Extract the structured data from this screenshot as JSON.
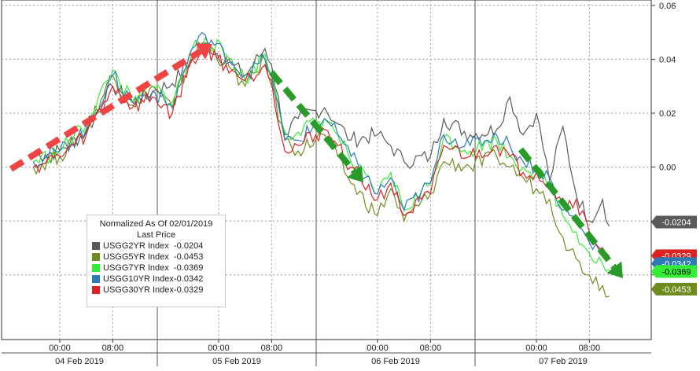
{
  "chart_data": {
    "type": "line",
    "title": "",
    "xlabel": "",
    "ylabel": "",
    "x_ticks": [
      {
        "label": "00:00",
        "day_idx": 0,
        "hour": 0
      },
      {
        "label": "08:00",
        "day_idx": 0,
        "hour": 8
      },
      {
        "label": "00:00",
        "day_idx": 1,
        "hour": 0
      },
      {
        "label": "08:00",
        "day_idx": 1,
        "hour": 8
      },
      {
        "label": "00:00",
        "day_idx": 2,
        "hour": 0
      },
      {
        "label": "08:00",
        "day_idx": 2,
        "hour": 8
      },
      {
        "label": "00:00",
        "day_idx": 3,
        "hour": 0
      },
      {
        "label": "08:00",
        "day_idx": 3,
        "hour": 8
      }
    ],
    "day_labels": [
      "04 Feb 2019",
      "05 Feb 2019",
      "06 Feb 2019",
      "07 Feb 2019"
    ],
    "y_ticks": [
      0.06,
      0.04,
      0.02,
      0.0,
      -0.02,
      -0.04
    ],
    "y_tick_labels": [
      "0.06",
      "0.04",
      "0.02",
      "0.00",
      "-0.02",
      "-0.04"
    ],
    "ylim": [
      -0.064,
      0.062
    ],
    "grid": true,
    "legend_position": "bottom-left",
    "legend_header": [
      "Normalized As Of 02/01/2019",
      "Last Price"
    ],
    "series": [
      {
        "name": "USGG2YR Index",
        "last": -0.0204,
        "last_label": "-0.0204",
        "color": "#5a5a5a",
        "points": [
          [
            -4,
            0.004
          ],
          [
            0,
            0.006
          ],
          [
            4,
            0.013
          ],
          [
            8,
            0.03
          ],
          [
            11,
            0.024
          ],
          [
            14,
            0.028
          ],
          [
            17,
            0.031
          ],
          [
            20,
            0.04
          ],
          [
            22,
            0.046
          ],
          [
            26,
            0.038
          ],
          [
            28,
            0.034
          ],
          [
            31,
            0.044
          ],
          [
            32,
            0.038
          ],
          [
            34,
            0.012
          ],
          [
            36,
            0.018
          ],
          [
            40,
            0.022
          ],
          [
            42,
            0.016
          ],
          [
            44,
            0.01
          ],
          [
            48,
            0.012
          ],
          [
            50,
            0.008
          ],
          [
            52,
            0.002
          ],
          [
            56,
            0.004
          ],
          [
            58,
            0.018
          ],
          [
            62,
            0.012
          ],
          [
            66,
            0.014
          ],
          [
            68,
            0.026
          ],
          [
            70,
            0.012
          ],
          [
            72,
            0.02
          ],
          [
            74,
            -0.005
          ],
          [
            76,
            0.015
          ],
          [
            78,
            -0.01
          ],
          [
            80,
            -0.02
          ],
          [
            82,
            -0.012
          ],
          [
            83,
            -0.022
          ]
        ]
      },
      {
        "name": "USGG5YR Index",
        "last": -0.0453,
        "last_label": "-0.0453",
        "color": "#6e8c1e",
        "points": [
          [
            -4,
            0.0
          ],
          [
            0,
            0.004
          ],
          [
            4,
            0.014
          ],
          [
            8,
            0.034
          ],
          [
            11,
            0.023
          ],
          [
            14,
            0.03
          ],
          [
            17,
            0.022
          ],
          [
            20,
            0.042
          ],
          [
            22,
            0.046
          ],
          [
            26,
            0.036
          ],
          [
            28,
            0.03
          ],
          [
            31,
            0.04
          ],
          [
            32,
            0.03
          ],
          [
            34,
            0.01
          ],
          [
            36,
            0.006
          ],
          [
            40,
            0.012
          ],
          [
            42,
            0.004
          ],
          [
            44,
            -0.006
          ],
          [
            48,
            -0.018
          ],
          [
            50,
            -0.008
          ],
          [
            52,
            -0.02
          ],
          [
            56,
            -0.01
          ],
          [
            58,
            0.002
          ],
          [
            62,
            0.0
          ],
          [
            66,
            0.004
          ],
          [
            68,
            0.0
          ],
          [
            70,
            -0.004
          ],
          [
            72,
            -0.008
          ],
          [
            74,
            -0.012
          ],
          [
            76,
            -0.026
          ],
          [
            78,
            -0.034
          ],
          [
            80,
            -0.04
          ],
          [
            82,
            -0.044
          ],
          [
            83,
            -0.048
          ]
        ]
      },
      {
        "name": "USGG7YR Index",
        "last": -0.0369,
        "last_label": "-0.0369",
        "color": "#33ee33",
        "points": [
          [
            -4,
            0.002
          ],
          [
            0,
            0.006
          ],
          [
            4,
            0.016
          ],
          [
            8,
            0.036
          ],
          [
            11,
            0.024
          ],
          [
            14,
            0.03
          ],
          [
            17,
            0.024
          ],
          [
            20,
            0.044
          ],
          [
            22,
            0.048
          ],
          [
            26,
            0.04
          ],
          [
            28,
            0.032
          ],
          [
            31,
            0.042
          ],
          [
            32,
            0.034
          ],
          [
            34,
            0.013
          ],
          [
            36,
            0.013
          ],
          [
            40,
            0.018
          ],
          [
            42,
            0.012
          ],
          [
            44,
            0.002
          ],
          [
            48,
            -0.01
          ],
          [
            50,
            -0.002
          ],
          [
            52,
            -0.016
          ],
          [
            56,
            -0.006
          ],
          [
            58,
            0.011
          ],
          [
            62,
            0.006
          ],
          [
            66,
            0.01
          ],
          [
            68,
            0.004
          ],
          [
            70,
            0.0
          ],
          [
            72,
            -0.002
          ],
          [
            74,
            -0.006
          ],
          [
            76,
            -0.018
          ],
          [
            78,
            -0.024
          ],
          [
            80,
            -0.032
          ],
          [
            82,
            -0.036
          ],
          [
            83,
            -0.038
          ]
        ]
      },
      {
        "name": "USGG10YR Index",
        "last": -0.0342,
        "last_label": "-0.0342",
        "color": "#2e7ab8",
        "points": [
          [
            -4,
            0.002
          ],
          [
            0,
            0.006
          ],
          [
            4,
            0.014
          ],
          [
            8,
            0.034
          ],
          [
            11,
            0.024
          ],
          [
            14,
            0.028
          ],
          [
            17,
            0.022
          ],
          [
            20,
            0.044
          ],
          [
            22,
            0.049
          ],
          [
            26,
            0.039
          ],
          [
            28,
            0.034
          ],
          [
            31,
            0.04
          ],
          [
            32,
            0.034
          ],
          [
            34,
            0.01
          ],
          [
            36,
            0.01
          ],
          [
            40,
            0.018
          ],
          [
            42,
            0.012
          ],
          [
            44,
            0.004
          ],
          [
            48,
            -0.01
          ],
          [
            50,
            -0.004
          ],
          [
            52,
            -0.016
          ],
          [
            56,
            -0.006
          ],
          [
            58,
            0.012
          ],
          [
            62,
            0.008
          ],
          [
            66,
            0.012
          ],
          [
            68,
            0.008
          ],
          [
            70,
            0.002
          ],
          [
            72,
            0.0
          ],
          [
            74,
            -0.004
          ],
          [
            76,
            -0.016
          ],
          [
            78,
            -0.02
          ],
          [
            80,
            -0.028
          ],
          [
            82,
            -0.032
          ],
          [
            83,
            -0.034
          ]
        ]
      },
      {
        "name": "USGG30YR Index",
        "last": -0.0329,
        "last_label": "-0.0329",
        "color": "#dd2222",
        "points": [
          [
            -4,
            0.0
          ],
          [
            0,
            0.004
          ],
          [
            4,
            0.012
          ],
          [
            8,
            0.03
          ],
          [
            11,
            0.022
          ],
          [
            14,
            0.026
          ],
          [
            17,
            0.02
          ],
          [
            20,
            0.04
          ],
          [
            22,
            0.044
          ],
          [
            26,
            0.036
          ],
          [
            28,
            0.032
          ],
          [
            31,
            0.038
          ],
          [
            32,
            0.032
          ],
          [
            34,
            0.006
          ],
          [
            36,
            0.008
          ],
          [
            40,
            0.014
          ],
          [
            42,
            0.008
          ],
          [
            44,
            0.0
          ],
          [
            48,
            -0.012
          ],
          [
            50,
            -0.006
          ],
          [
            52,
            -0.018
          ],
          [
            56,
            -0.01
          ],
          [
            58,
            0.008
          ],
          [
            62,
            0.004
          ],
          [
            66,
            0.008
          ],
          [
            68,
            0.004
          ],
          [
            70,
            -0.002
          ],
          [
            72,
            -0.002
          ],
          [
            74,
            -0.006
          ],
          [
            76,
            -0.014
          ],
          [
            78,
            -0.012
          ],
          [
            80,
            -0.024
          ],
          [
            82,
            -0.03
          ],
          [
            83,
            -0.033
          ]
        ]
      }
    ]
  }
}
